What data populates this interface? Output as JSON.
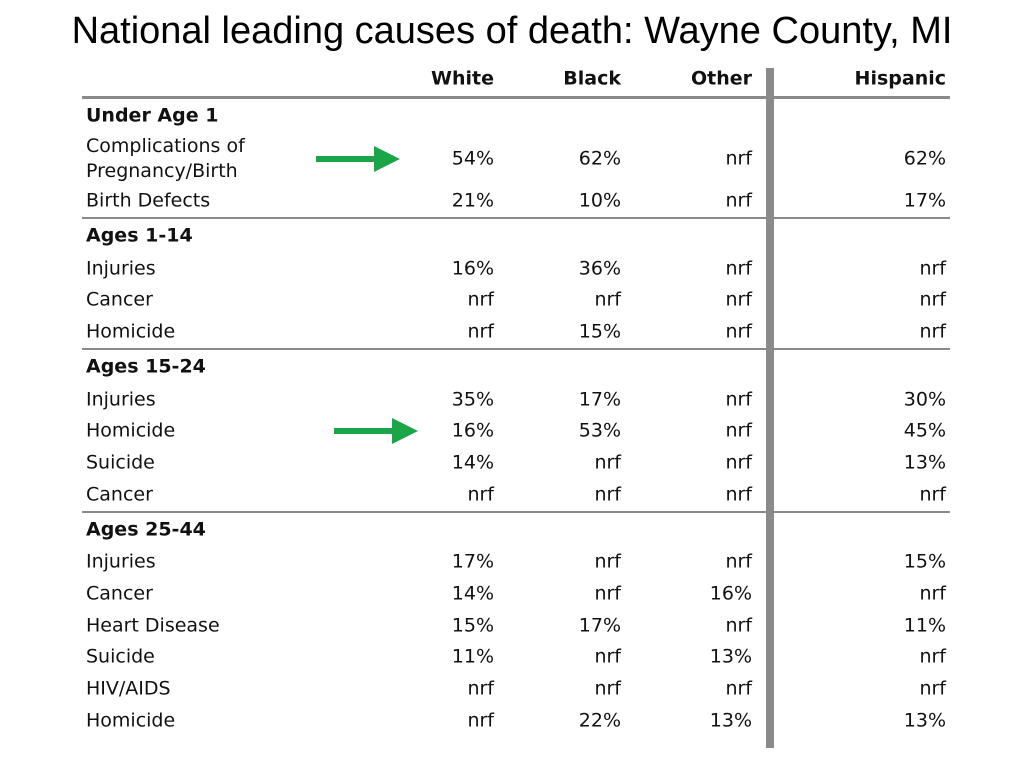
{
  "title": "National leading causes of death:  Wayne County, MI",
  "columns": [
    "White",
    "Black",
    "Other",
    "Hispanic"
  ],
  "sections": [
    {
      "name": "Under Age 1",
      "rows": [
        {
          "label": "Complications of\nPregnancy/Birth",
          "values": [
            "54%",
            "62%",
            "nrf",
            "62%"
          ],
          "arrow": true
        },
        {
          "label": "Birth Defects",
          "values": [
            "21%",
            "10%",
            "nrf",
            "17%"
          ]
        }
      ]
    },
    {
      "name": "Ages 1-14",
      "rows": [
        {
          "label": "Injuries",
          "values": [
            "16%",
            "36%",
            "nrf",
            "nrf"
          ]
        },
        {
          "label": "Cancer",
          "values": [
            "nrf",
            "nrf",
            "nrf",
            "nrf"
          ]
        },
        {
          "label": "Homicide",
          "values": [
            "nrf",
            "15%",
            "nrf",
            "nrf"
          ]
        }
      ]
    },
    {
      "name": "Ages 15-24",
      "rows": [
        {
          "label": "Injuries",
          "values": [
            "35%",
            "17%",
            "nrf",
            "30%"
          ]
        },
        {
          "label": "Homicide",
          "values": [
            "16%",
            "53%",
            "nrf",
            "45%"
          ],
          "arrow": true
        },
        {
          "label": "Suicide",
          "values": [
            "14%",
            "nrf",
            "nrf",
            "13%"
          ]
        },
        {
          "label": "Cancer",
          "values": [
            "nrf",
            "nrf",
            "nrf",
            "nrf"
          ]
        }
      ]
    },
    {
      "name": "Ages 25-44",
      "rows": [
        {
          "label": "Injuries",
          "values": [
            "17%",
            "nrf",
            "nrf",
            "15%"
          ]
        },
        {
          "label": "Cancer",
          "values": [
            "14%",
            "nrf",
            "16%",
            "nrf"
          ]
        },
        {
          "label": "Heart Disease",
          "values": [
            "15%",
            "17%",
            "nrf",
            "11%"
          ]
        },
        {
          "label": "Suicide",
          "values": [
            "11%",
            "nrf",
            "13%",
            "nrf"
          ]
        },
        {
          "label": "HIV/AIDS",
          "values": [
            "nrf",
            "nrf",
            "nrf",
            "nrf"
          ]
        },
        {
          "label": "Homicide",
          "values": [
            "nrf",
            "22%",
            "13%",
            "13%"
          ]
        }
      ]
    }
  ],
  "colors": {
    "arrow": "#1aa548",
    "rule": "#8a8a8a"
  }
}
